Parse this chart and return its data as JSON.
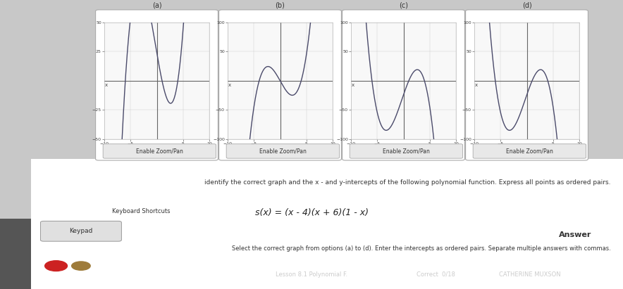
{
  "bg_color": "#c8c8c8",
  "panel_bg": "#f0f0f0",
  "white": "#ffffff",
  "graph_bg": "#f5f5f5",
  "grid_color": "#cccccc",
  "axis_color": "#555555",
  "curve_color": "#4a4a6a",
  "title_text": "Lesson 8.1 Polynomial F.",
  "correct_text": "Correct\n0/18",
  "student_name": "CATHERINE MUXSON",
  "main_question": "identify the correct graph and the x - and y-intercepts of the following polynomial function. Express all points as ordered pairs.",
  "function_text": "s(x) = (x - 4)(x + 6)(1 - x)",
  "answer_label": "Answer",
  "select_text": "Select the correct graph from options (a) to (d). Enter the intercepts as ordered pairs. Separate multiple answers with commas.",
  "keyboard_text": "Keyboard Shortcuts",
  "keypad_text": "Keypad",
  "enable_zoom": "Enable Zoom/Pan",
  "graph_labels": [
    "(a)",
    "(b)",
    "(c)",
    "(d)"
  ],
  "xlim": [
    -10,
    10
  ],
  "ylim_a": [
    -50,
    50
  ],
  "ylim_b": [
    -100,
    100
  ],
  "ylim_c": [
    -100,
    100
  ],
  "ylim_d": [
    -100,
    100
  ]
}
